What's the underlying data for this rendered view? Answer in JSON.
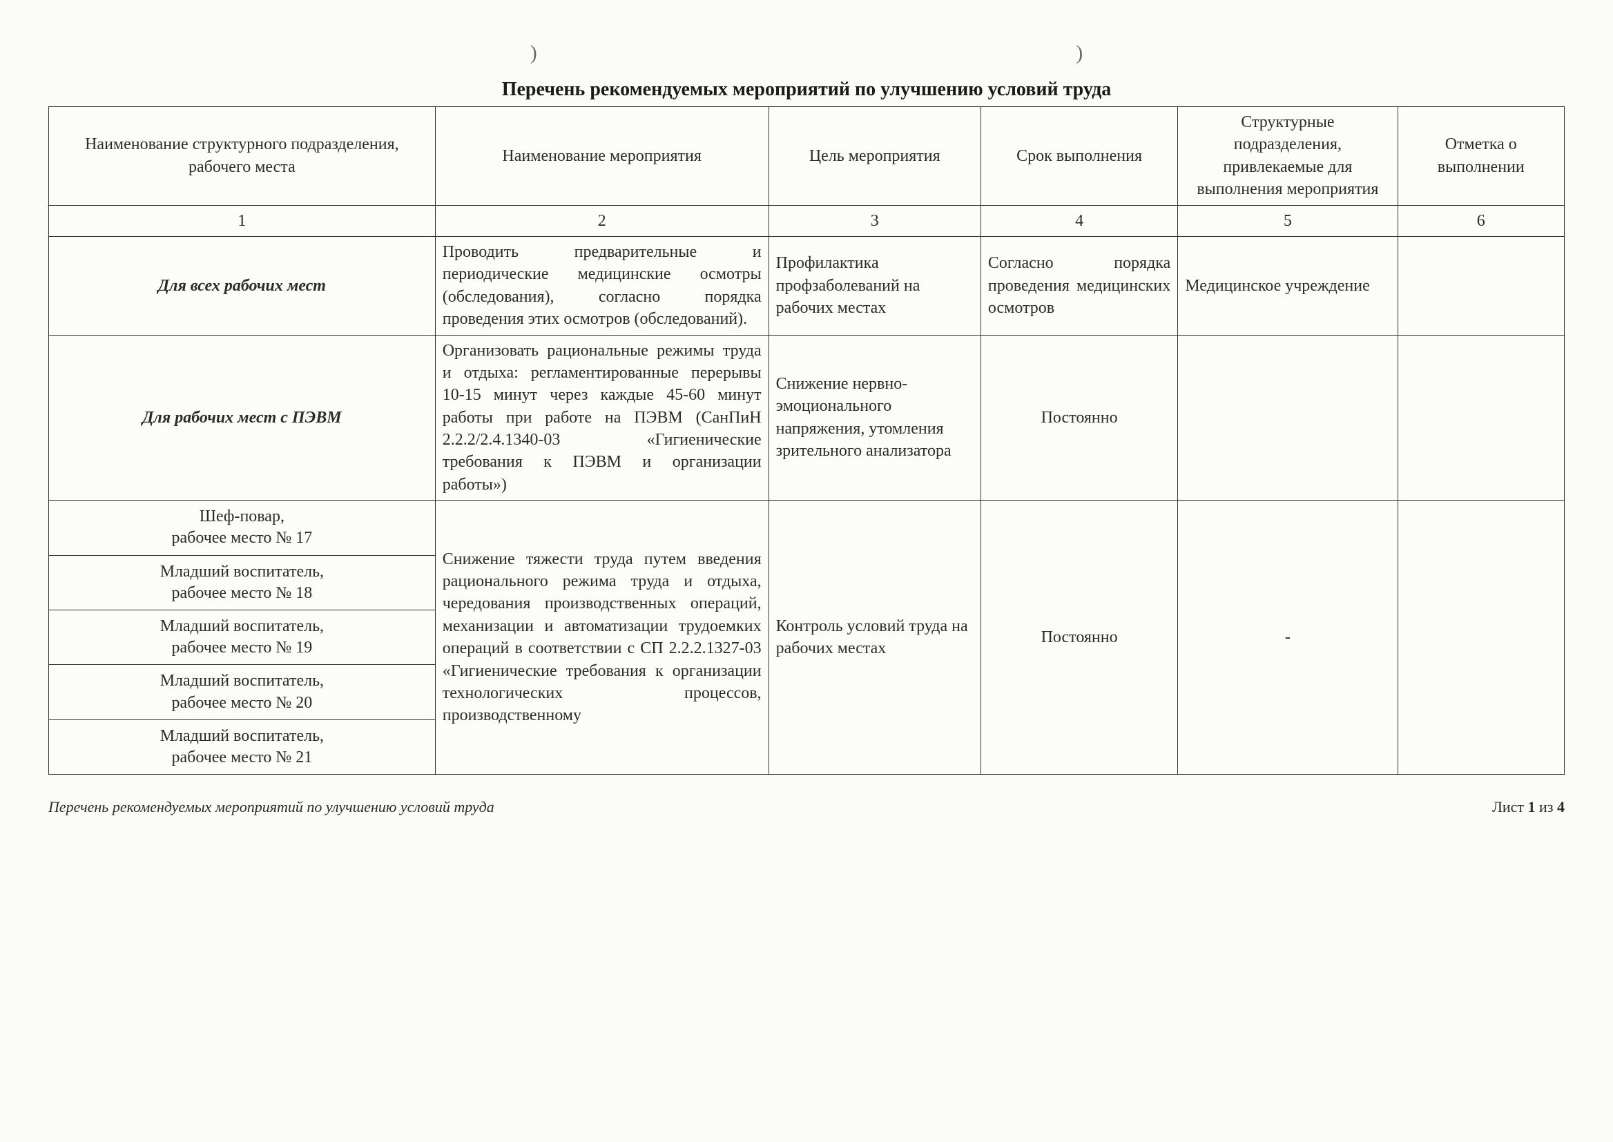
{
  "marks": {
    "left": ")",
    "right": ")"
  },
  "title": "Перечень рекомендуемых мероприятий по улучшению условий труда",
  "headers": {
    "col1": "Наименование структурного подразделения, рабочего места",
    "col2": "Наименование мероприятия",
    "col3": "Цель мероприятия",
    "col4": "Срок выполнения",
    "col5": "Структурные подразделения, привлекаемые для выполнения мероприятия",
    "col6": "Отметка о выполнении"
  },
  "numrow": {
    "n1": "1",
    "n2": "2",
    "n3": "3",
    "n4": "4",
    "n5": "5",
    "n6": "6"
  },
  "row1": {
    "c1": "Для всех рабочих мест",
    "c2": "Проводить предварительные и периодические медицинские осмотры (обследования), согласно порядка проведения этих осмотров (обследований).",
    "c3": "Профилактика профзаболеваний на рабочих местах",
    "c4": "Согласно порядка проведения медицинских осмотров",
    "c5": "Медицинское учреждение",
    "c6": ""
  },
  "row2": {
    "c1": "Для рабочих мест с ПЭВМ",
    "c2": "Организовать рациональные режимы труда и отдыха: регламентированные перерывы 10-15 минут через каждые 45-60 минут работы при работе на ПЭВМ (СанПиН 2.2.2/2.4.1340-03 «Гигиенические требования к ПЭВМ и организации работы»)",
    "c3": "Снижение нервно-эмоционального напряжения, утомления зрительного анализатора",
    "c4": "Постоянно",
    "c5": "",
    "c6": ""
  },
  "row3": {
    "sub1a": "Шеф-повар,",
    "sub1b": "рабочее место № 17",
    "sub2a": "Младший воспитатель,",
    "sub2b": "рабочее место № 18",
    "sub3a": "Младший воспитатель,",
    "sub3b": "рабочее место № 19",
    "sub4a": "Младший воспитатель,",
    "sub4b": "рабочее место № 20",
    "sub5a": "Младший воспитатель,",
    "sub5b": "рабочее место № 21",
    "c2": "Снижение тяжести труда путем введения рационального режима труда и отдыха, чередования производственных операций, механизации и автоматизации трудоемких операций в соответствии с СП 2.2.2.1327-03 «Гигиенические требования к организации технологических процессов, производственному",
    "c3": "Контроль условий труда на рабочих местах",
    "c4": "Постоянно",
    "c5": "-",
    "c6": ""
  },
  "footer": {
    "left": "Перечень рекомендуемых мероприятий по улучшению условий труда",
    "right_pre": "Лист ",
    "right_cur": "1",
    "right_mid": " из ",
    "right_tot": "4"
  }
}
